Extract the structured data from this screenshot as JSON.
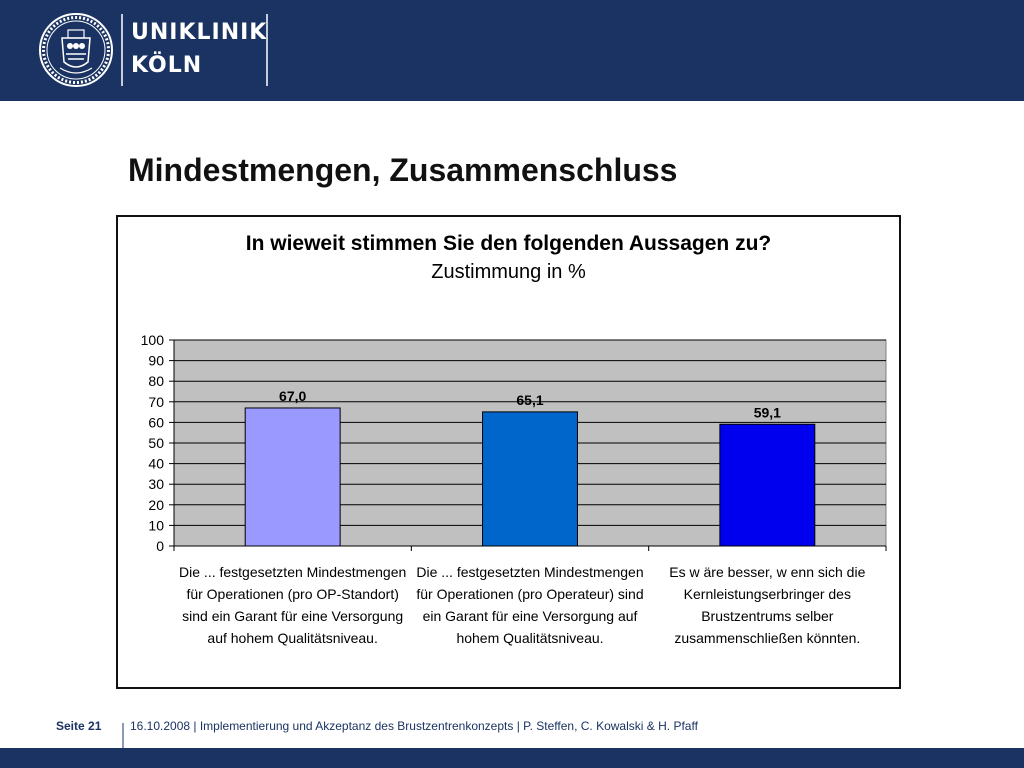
{
  "header": {
    "brand_line1": "UNIKLINIK",
    "brand_line2": "KÖLN"
  },
  "slide": {
    "title": "Mindestmengen, Zusammenschluss"
  },
  "footer": {
    "page_label": "Seite 21",
    "info": "16.10.2008 | Implementierung und Akzeptanz des Brustzentrenkonzepts | P. Steffen, C. Kowalski & H. Pfaff"
  },
  "colors": {
    "header_bg": "#1b3362",
    "plot_bg": "#c0c0c0"
  },
  "chart_data": {
    "type": "bar",
    "title": "In wieweit stimmen Sie den folgenden Aussagen zu?",
    "subtitle": "Zustimmung in %",
    "categories": [
      "Die ... festgesetzten Mindestmengen für Operationen (pro OP-Standort) sind ein Garant für eine Versorgung auf hohem Qualitätsniveau.",
      "Die ... festgesetzten Mindestmengen für Operationen (pro Operateur) sind ein Garant für eine Versorgung auf hohem Qualitätsniveau.",
      "Es w äre besser, w enn sich die Kernleistungserbringer des Brustzentrums selber zusammenschließen könnten."
    ],
    "values": [
      67.0,
      65.1,
      59.1
    ],
    "value_labels": [
      "67,0",
      "65,1",
      "59,1"
    ],
    "bar_colors": [
      "#9999ff",
      "#0066cc",
      "#0000ee"
    ],
    "ylim": [
      0,
      100
    ],
    "yticks": [
      0,
      10,
      20,
      30,
      40,
      50,
      60,
      70,
      80,
      90,
      100
    ],
    "grid": true,
    "legend": "none"
  }
}
